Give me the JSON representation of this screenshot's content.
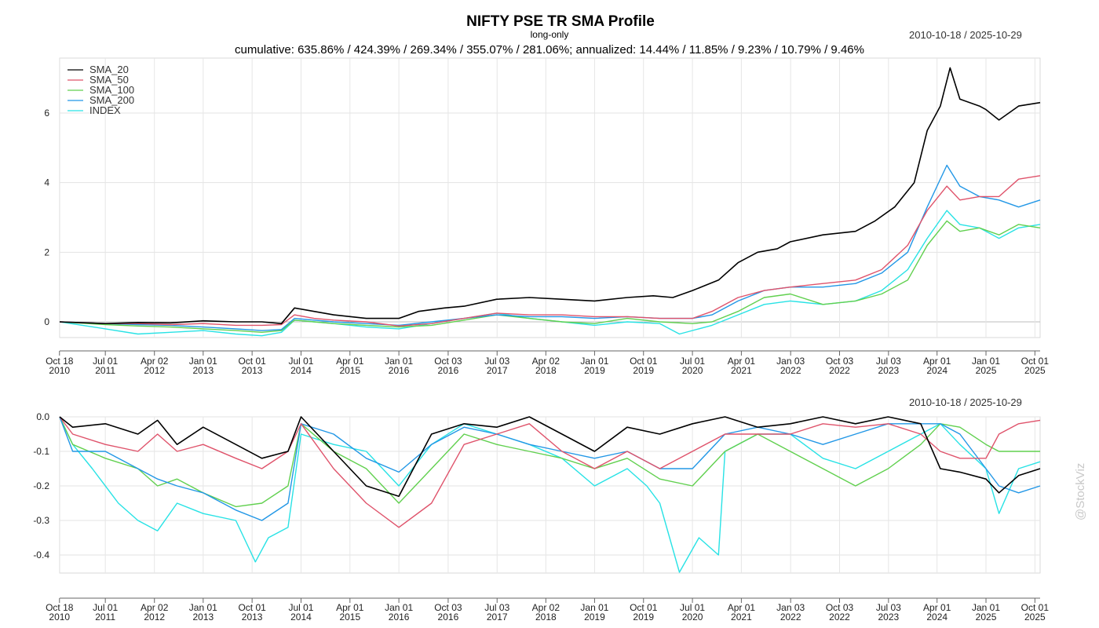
{
  "title": "NIFTY PSE TR SMA Profile",
  "subtitle": "long-only",
  "summary": "cumulative: 635.86% / 424.39% / 269.34% / 355.07% / 281.06%; annualized: 14.44% / 11.85% / 9.23% / 10.79% / 9.46%",
  "date_range": "2010-10-18 / 2025-10-29",
  "watermark": "@StockViz",
  "colors": {
    "SMA_20": "#000000",
    "SMA_50": "#df536b",
    "SMA_100": "#61d04f",
    "SMA_200": "#2297e6",
    "INDEX": "#28e2e5"
  },
  "chart_data": [
    {
      "type": "line",
      "name": "cumulative-returns",
      "x_ticks": [
        "Oct 18 2010",
        "Jul 01 2011",
        "Apr 02 2012",
        "Jan 01 2013",
        "Oct 01 2013",
        "Jul 01 2014",
        "Apr 01 2015",
        "Jan 01 2016",
        "Oct 03 2016",
        "Jul 03 2017",
        "Apr 02 2018",
        "Jan 01 2019",
        "Oct 01 2019",
        "Jul 01 2020",
        "Apr 01 2021",
        "Jan 03 2022",
        "Oct 03 2022",
        "Jul 03 2023",
        "Apr 01 2024",
        "Jan 01 2025",
        "Oct 01 2025"
      ],
      "x_range": [
        2010.8,
        2025.83
      ],
      "y_ticks": [
        0,
        2,
        4,
        6
      ],
      "ylim": [
        -0.8,
        7.5
      ],
      "grid": true,
      "legend": "top-left",
      "series": [
        {
          "name": "SMA_20",
          "x": [
            2010.8,
            2011.5,
            2012.0,
            2012.5,
            2013.0,
            2013.5,
            2013.9,
            2014.2,
            2014.4,
            2014.7,
            2015.0,
            2015.5,
            2016.0,
            2016.3,
            2016.7,
            2017.0,
            2017.5,
            2018.0,
            2018.5,
            2019.0,
            2019.5,
            2019.9,
            2020.2,
            2020.5,
            2020.9,
            2021.2,
            2021.5,
            2021.8,
            2022.0,
            2022.5,
            2023.0,
            2023.3,
            2023.6,
            2023.9,
            2024.1,
            2024.3,
            2024.45,
            2024.6,
            2024.9,
            2025.0,
            2025.2,
            2025.5,
            2025.83
          ],
          "y": [
            0,
            -0.05,
            -0.02,
            -0.03,
            0.03,
            0.0,
            0.0,
            -0.05,
            0.4,
            0.3,
            0.2,
            0.1,
            0.1,
            0.3,
            0.4,
            0.45,
            0.65,
            0.7,
            0.65,
            0.6,
            0.7,
            0.75,
            0.7,
            0.9,
            1.2,
            1.7,
            2.0,
            2.1,
            2.3,
            2.5,
            2.6,
            2.9,
            3.3,
            4.0,
            5.5,
            6.2,
            7.3,
            6.4,
            6.2,
            6.1,
            5.8,
            6.2,
            6.3
          ]
        },
        {
          "name": "SMA_50",
          "x": [
            2010.8,
            2011.5,
            2012.0,
            2012.5,
            2013.0,
            2013.5,
            2013.9,
            2014.2,
            2014.4,
            2014.7,
            2015.0,
            2015.5,
            2016.0,
            2016.5,
            2017.0,
            2017.5,
            2018.0,
            2018.5,
            2019.0,
            2019.5,
            2020.0,
            2020.5,
            2020.8,
            2021.2,
            2021.6,
            2022.0,
            2022.5,
            2023.0,
            2023.4,
            2023.8,
            2024.1,
            2024.4,
            2024.6,
            2024.9,
            2025.2,
            2025.5,
            2025.83
          ],
          "y": [
            0,
            -0.05,
            -0.05,
            -0.08,
            -0.05,
            -0.1,
            -0.1,
            -0.08,
            0.2,
            0.1,
            0.05,
            0.0,
            -0.12,
            -0.05,
            0.1,
            0.25,
            0.2,
            0.2,
            0.15,
            0.15,
            0.1,
            0.1,
            0.3,
            0.7,
            0.9,
            1.0,
            1.1,
            1.2,
            1.5,
            2.2,
            3.2,
            3.9,
            3.5,
            3.6,
            3.6,
            4.1,
            4.2
          ]
        },
        {
          "name": "SMA_100",
          "x": [
            2010.8,
            2011.5,
            2012.0,
            2012.5,
            2013.0,
            2013.5,
            2013.9,
            2014.2,
            2014.4,
            2014.7,
            2015.0,
            2015.5,
            2016.0,
            2016.5,
            2017.0,
            2017.5,
            2018.0,
            2018.5,
            2019.0,
            2019.5,
            2020.0,
            2020.5,
            2020.8,
            2021.2,
            2021.6,
            2022.0,
            2022.5,
            2023.0,
            2023.4,
            2023.8,
            2024.1,
            2024.4,
            2024.6,
            2024.9,
            2025.2,
            2025.5,
            2025.83
          ],
          "y": [
            0,
            -0.08,
            -0.12,
            -0.15,
            -0.2,
            -0.25,
            -0.3,
            -0.25,
            0.05,
            0.0,
            -0.05,
            -0.1,
            -0.15,
            -0.1,
            0.05,
            0.2,
            0.1,
            0.0,
            -0.05,
            0.1,
            0.0,
            -0.05,
            0.0,
            0.3,
            0.7,
            0.8,
            0.5,
            0.6,
            0.8,
            1.2,
            2.2,
            2.9,
            2.6,
            2.7,
            2.5,
            2.8,
            2.7
          ]
        },
        {
          "name": "SMA_200",
          "x": [
            2010.8,
            2011.5,
            2012.0,
            2012.5,
            2013.0,
            2013.5,
            2013.9,
            2014.2,
            2014.4,
            2014.7,
            2015.0,
            2015.5,
            2016.0,
            2016.5,
            2017.0,
            2017.5,
            2018.0,
            2018.5,
            2019.0,
            2019.5,
            2020.0,
            2020.5,
            2020.8,
            2021.2,
            2021.6,
            2022.0,
            2022.5,
            2023.0,
            2023.4,
            2023.8,
            2024.1,
            2024.4,
            2024.6,
            2024.9,
            2025.2,
            2025.5,
            2025.83
          ],
          "y": [
            0,
            -0.05,
            -0.08,
            -0.1,
            -0.15,
            -0.2,
            -0.25,
            -0.22,
            0.1,
            0.05,
            0.0,
            -0.05,
            -0.1,
            0.0,
            0.1,
            0.2,
            0.15,
            0.15,
            0.1,
            0.15,
            0.1,
            0.1,
            0.2,
            0.6,
            0.9,
            1.0,
            1.0,
            1.1,
            1.4,
            2.0,
            3.3,
            4.5,
            3.9,
            3.6,
            3.5,
            3.3,
            3.5
          ]
        },
        {
          "name": "INDEX",
          "x": [
            2010.8,
            2011.5,
            2012.0,
            2012.5,
            2013.0,
            2013.5,
            2013.9,
            2014.2,
            2014.4,
            2014.7,
            2015.0,
            2015.5,
            2016.0,
            2016.5,
            2017.0,
            2017.5,
            2018.0,
            2018.5,
            2019.0,
            2019.5,
            2020.0,
            2020.3,
            2020.8,
            2021.2,
            2021.6,
            2022.0,
            2022.5,
            2023.0,
            2023.4,
            2023.8,
            2024.1,
            2024.4,
            2024.6,
            2024.9,
            2025.2,
            2025.5,
            2025.83
          ],
          "y": [
            0,
            -0.2,
            -0.35,
            -0.3,
            -0.25,
            -0.35,
            -0.4,
            -0.3,
            0.05,
            0.0,
            -0.05,
            -0.15,
            -0.2,
            -0.05,
            0.1,
            0.25,
            0.1,
            0.0,
            -0.1,
            0.0,
            -0.05,
            -0.35,
            -0.1,
            0.2,
            0.5,
            0.6,
            0.5,
            0.6,
            0.9,
            1.5,
            2.4,
            3.2,
            2.8,
            2.7,
            2.4,
            2.7,
            2.8
          ]
        }
      ]
    },
    {
      "type": "line",
      "name": "drawdown",
      "x_ticks": [
        "Oct 18 2010",
        "Jul 01 2011",
        "Apr 02 2012",
        "Jan 01 2013",
        "Oct 01 2013",
        "Jul 01 2014",
        "Apr 01 2015",
        "Jan 01 2016",
        "Oct 03 2016",
        "Jul 03 2017",
        "Apr 02 2018",
        "Jan 01 2019",
        "Oct 01 2019",
        "Jul 01 2020",
        "Apr 01 2021",
        "Jan 03 2022",
        "Oct 03 2022",
        "Jul 03 2023",
        "Apr 01 2024",
        "Jan 01 2025",
        "Oct 01 2025"
      ],
      "x_range": [
        2010.8,
        2025.83
      ],
      "y_ticks": [
        0.0,
        -0.1,
        -0.2,
        -0.3,
        -0.4
      ],
      "ylim": [
        -0.5,
        0.0
      ],
      "grid": true,
      "series": [
        {
          "name": "SMA_20",
          "x": [
            2010.8,
            2011.0,
            2011.5,
            2012.0,
            2012.3,
            2012.6,
            2013.0,
            2013.5,
            2013.9,
            2014.3,
            2014.5,
            2015.0,
            2015.5,
            2016.0,
            2016.5,
            2017.0,
            2017.5,
            2018.0,
            2018.5,
            2019.0,
            2019.5,
            2020.0,
            2020.5,
            2021.0,
            2021.5,
            2022.0,
            2022.5,
            2023.0,
            2023.5,
            2024.0,
            2024.3,
            2024.6,
            2025.0,
            2025.2,
            2025.5,
            2025.83
          ],
          "y": [
            0,
            -0.03,
            -0.02,
            -0.05,
            -0.01,
            -0.08,
            -0.03,
            -0.08,
            -0.12,
            -0.1,
            0,
            -0.1,
            -0.2,
            -0.23,
            -0.05,
            -0.02,
            -0.03,
            0,
            -0.05,
            -0.1,
            -0.03,
            -0.05,
            -0.02,
            0,
            -0.03,
            -0.02,
            0,
            -0.02,
            0,
            -0.02,
            -0.15,
            -0.16,
            -0.18,
            -0.22,
            -0.17,
            -0.15
          ]
        },
        {
          "name": "SMA_50",
          "x": [
            2010.8,
            2011.0,
            2011.5,
            2012.0,
            2012.3,
            2012.6,
            2013.0,
            2013.5,
            2013.9,
            2014.3,
            2014.5,
            2015.0,
            2015.5,
            2016.0,
            2016.5,
            2017.0,
            2017.5,
            2018.0,
            2018.5,
            2019.0,
            2019.5,
            2020.0,
            2020.5,
            2021.0,
            2021.5,
            2022.0,
            2022.5,
            2023.0,
            2023.5,
            2024.0,
            2024.3,
            2024.6,
            2025.0,
            2025.2,
            2025.5,
            2025.83
          ],
          "y": [
            0,
            -0.05,
            -0.08,
            -0.1,
            -0.05,
            -0.1,
            -0.08,
            -0.12,
            -0.15,
            -0.1,
            -0.02,
            -0.15,
            -0.25,
            -0.32,
            -0.25,
            -0.08,
            -0.05,
            -0.02,
            -0.1,
            -0.15,
            -0.1,
            -0.15,
            -0.1,
            -0.05,
            -0.05,
            -0.05,
            -0.02,
            -0.03,
            -0.02,
            -0.05,
            -0.1,
            -0.12,
            -0.12,
            -0.05,
            -0.02,
            -0.01
          ]
        },
        {
          "name": "SMA_100",
          "x": [
            2010.8,
            2011.0,
            2011.5,
            2012.0,
            2012.3,
            2012.6,
            2013.0,
            2013.5,
            2013.9,
            2014.3,
            2014.5,
            2015.0,
            2015.5,
            2016.0,
            2016.5,
            2017.0,
            2017.5,
            2018.0,
            2018.5,
            2019.0,
            2019.5,
            2020.0,
            2020.5,
            2021.0,
            2021.5,
            2022.0,
            2022.5,
            2023.0,
            2023.5,
            2024.0,
            2024.3,
            2024.6,
            2025.0,
            2025.2,
            2025.5,
            2025.83
          ],
          "y": [
            0,
            -0.08,
            -0.12,
            -0.15,
            -0.2,
            -0.18,
            -0.22,
            -0.26,
            -0.25,
            -0.2,
            -0.02,
            -0.1,
            -0.15,
            -0.25,
            -0.15,
            -0.05,
            -0.08,
            -0.1,
            -0.12,
            -0.15,
            -0.12,
            -0.18,
            -0.2,
            -0.1,
            -0.05,
            -0.1,
            -0.15,
            -0.2,
            -0.15,
            -0.08,
            -0.02,
            -0.03,
            -0.08,
            -0.1,
            -0.1,
            -0.1
          ]
        },
        {
          "name": "SMA_200",
          "x": [
            2010.8,
            2011.0,
            2011.5,
            2012.0,
            2012.3,
            2012.6,
            2013.0,
            2013.5,
            2013.9,
            2014.3,
            2014.5,
            2015.0,
            2015.5,
            2016.0,
            2016.5,
            2017.0,
            2017.5,
            2018.0,
            2018.5,
            2019.0,
            2019.5,
            2020.0,
            2020.5,
            2021.0,
            2021.5,
            2022.0,
            2022.5,
            2023.0,
            2023.5,
            2024.0,
            2024.3,
            2024.6,
            2025.0,
            2025.2,
            2025.5,
            2025.83
          ],
          "y": [
            0,
            -0.1,
            -0.1,
            -0.15,
            -0.18,
            -0.2,
            -0.22,
            -0.27,
            -0.3,
            -0.25,
            -0.02,
            -0.05,
            -0.12,
            -0.16,
            -0.08,
            -0.03,
            -0.05,
            -0.08,
            -0.1,
            -0.12,
            -0.1,
            -0.15,
            -0.15,
            -0.05,
            -0.03,
            -0.05,
            -0.08,
            -0.05,
            -0.02,
            -0.02,
            -0.02,
            -0.05,
            -0.15,
            -0.2,
            -0.22,
            -0.2
          ]
        },
        {
          "name": "INDEX",
          "x": [
            2010.8,
            2011.0,
            2011.3,
            2011.7,
            2012.0,
            2012.3,
            2012.6,
            2013.0,
            2013.5,
            2013.8,
            2014.0,
            2014.3,
            2014.5,
            2015.0,
            2015.5,
            2016.0,
            2016.5,
            2017.0,
            2017.5,
            2018.0,
            2018.5,
            2019.0,
            2019.5,
            2019.8,
            2020.0,
            2020.3,
            2020.6,
            2020.9,
            2021.0,
            2021.5,
            2022.0,
            2022.5,
            2023.0,
            2023.5,
            2024.0,
            2024.3,
            2024.6,
            2025.0,
            2025.2,
            2025.5,
            2025.83
          ],
          "y": [
            0,
            -0.08,
            -0.15,
            -0.25,
            -0.3,
            -0.33,
            -0.25,
            -0.28,
            -0.3,
            -0.42,
            -0.35,
            -0.32,
            -0.05,
            -0.08,
            -0.1,
            -0.2,
            -0.08,
            -0.02,
            -0.05,
            -0.08,
            -0.12,
            -0.2,
            -0.15,
            -0.2,
            -0.25,
            -0.45,
            -0.35,
            -0.4,
            -0.1,
            -0.05,
            -0.05,
            -0.12,
            -0.15,
            -0.1,
            -0.05,
            -0.02,
            -0.08,
            -0.15,
            -0.28,
            -0.15,
            -0.13
          ]
        }
      ]
    }
  ]
}
